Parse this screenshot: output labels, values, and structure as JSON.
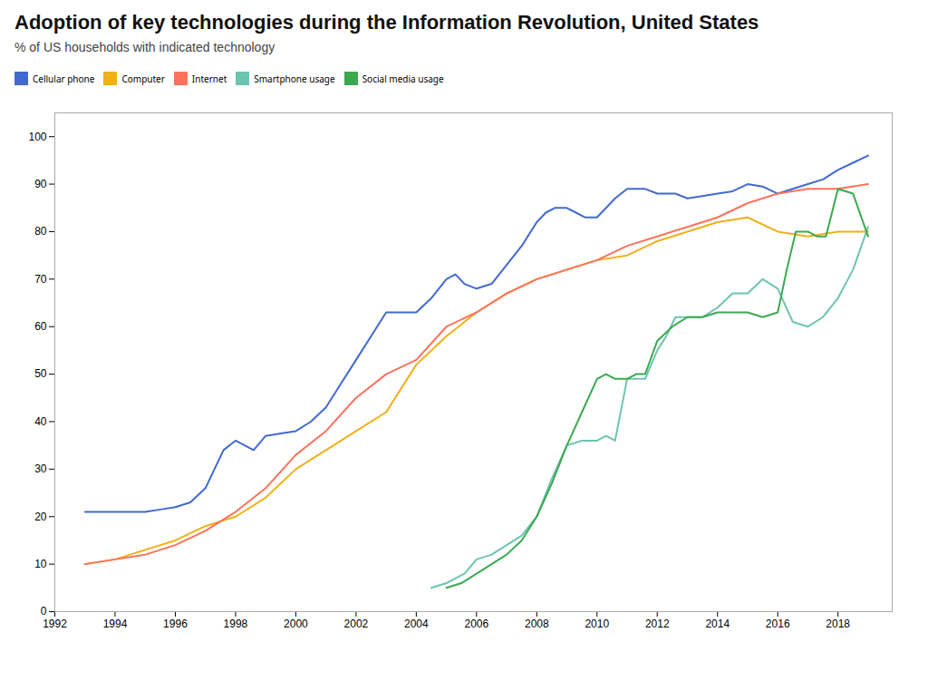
{
  "chart_data": {
    "type": "line",
    "title": "Adoption of key technologies during the Information Revolution, United States",
    "subtitle": "% of US households with indicated technology",
    "xlim": [
      1992,
      2019.8
    ],
    "ylim": [
      0,
      105
    ],
    "xticks": [
      1992,
      1994,
      1996,
      1998,
      2000,
      2002,
      2004,
      2006,
      2008,
      2010,
      2012,
      2014,
      2016,
      2018
    ],
    "yticks": [
      0,
      10,
      20,
      30,
      40,
      50,
      60,
      70,
      80,
      90,
      100
    ],
    "grid": false,
    "legend": "top",
    "series": [
      {
        "name": "Cellular phone",
        "x": [
          1993,
          1993.5,
          1994,
          1994.5,
          1995,
          1995.5,
          1996,
          1996.5,
          1997,
          1997.3,
          1997.6,
          1998,
          1998.3,
          1998.6,
          1999,
          1999.5,
          2000,
          2000.5,
          2001,
          2001.5,
          2002,
          2002.5,
          2003,
          2003.3,
          2003.6,
          2004,
          2004.5,
          2005,
          2005.3,
          2005.6,
          2006,
          2006.5,
          2007,
          2007.5,
          2008,
          2008.3,
          2008.6,
          2009,
          2009.3,
          2009.6,
          2010,
          2010.3,
          2010.6,
          2011,
          2011.3,
          2011.6,
          2012,
          2012.3,
          2012.6,
          2013,
          2013.5,
          2014,
          2014.5,
          2015,
          2015.5,
          2016,
          2016.5,
          2017,
          2017.5,
          2018,
          2018.5,
          2019
        ],
        "values": [
          21,
          21,
          21,
          21,
          21,
          21.5,
          22,
          23,
          26,
          30,
          34,
          36,
          35,
          34,
          37,
          37.5,
          38,
          40,
          43,
          48,
          53,
          58,
          63,
          63,
          63,
          63,
          66,
          70,
          71,
          69,
          68,
          69,
          73,
          77,
          82,
          84,
          85,
          85,
          84,
          83,
          83,
          85,
          87,
          89,
          89,
          89,
          88,
          88,
          88,
          87,
          87.5,
          88,
          88.5,
          90,
          89.5,
          88,
          89,
          90,
          91,
          93,
          94.5,
          96
        ]
      },
      {
        "name": "Computer",
        "x": [
          1993,
          1994,
          1995,
          1996,
          1997,
          1998,
          1999,
          2000,
          2001,
          2002,
          2003,
          2004,
          2005,
          2006,
          2007,
          2008,
          2009,
          2010,
          2011,
          2012,
          2013,
          2014,
          2015,
          2016,
          2017,
          2018,
          2019
        ],
        "values": [
          10,
          11,
          13,
          15,
          18,
          20,
          24,
          30,
          34,
          38,
          42,
          52,
          58,
          63,
          67,
          70,
          72,
          74,
          75,
          78,
          80,
          82,
          83,
          80,
          79,
          80,
          80
        ]
      },
      {
        "name": "Internet",
        "x": [
          1993,
          1994,
          1995,
          1996,
          1997,
          1998,
          1999,
          2000,
          2001,
          2002,
          2003,
          2004,
          2005,
          2006,
          2007,
          2008,
          2009,
          2010,
          2011,
          2012,
          2013,
          2014,
          2015,
          2016,
          2017,
          2018,
          2019
        ],
        "values": [
          10,
          11,
          12,
          14,
          17,
          21,
          26,
          33,
          38,
          45,
          50,
          53,
          60,
          63,
          67,
          70,
          72,
          74,
          77,
          79,
          81,
          83,
          86,
          88,
          89,
          89,
          90
        ]
      },
      {
        "name": "Smartphone usage",
        "x": [
          2004.5,
          2005,
          2005.3,
          2005.6,
          2006,
          2006.5,
          2007,
          2007.5,
          2008,
          2008.5,
          2009,
          2009.5,
          2010,
          2010.3,
          2010.6,
          2011,
          2011.3,
          2011.6,
          2012,
          2012.3,
          2012.6,
          2013,
          2013.5,
          2014,
          2014.5,
          2015,
          2015.5,
          2016,
          2016.5,
          2017,
          2017.5,
          2018,
          2018.5,
          2019
        ],
        "values": [
          5,
          6,
          7,
          8,
          11,
          12,
          14,
          16,
          20,
          28,
          35,
          36,
          36,
          37,
          36,
          49,
          49,
          49,
          55,
          58,
          62,
          62,
          62,
          64,
          67,
          67,
          70,
          68,
          61,
          60,
          62,
          66,
          72,
          81
        ]
      },
      {
        "name": "Social media usage",
        "x": [
          2005,
          2005.5,
          2006,
          2006.5,
          2007,
          2007.5,
          2008,
          2008.5,
          2009,
          2009.5,
          2010,
          2010.3,
          2010.6,
          2011,
          2011.3,
          2011.6,
          2012,
          2012.5,
          2013,
          2013.5,
          2014,
          2014.5,
          2015,
          2015.5,
          2016,
          2016.3,
          2016.6,
          2017,
          2017.3,
          2017.6,
          2018,
          2018.5,
          2019
        ],
        "values": [
          5,
          6,
          8,
          10,
          12,
          15,
          20,
          27,
          35,
          42,
          49,
          50,
          49,
          49,
          50,
          50,
          57,
          60,
          62,
          62,
          63,
          63,
          63,
          62,
          63,
          72,
          80,
          80,
          79,
          79,
          89,
          88,
          79
        ]
      }
    ]
  }
}
